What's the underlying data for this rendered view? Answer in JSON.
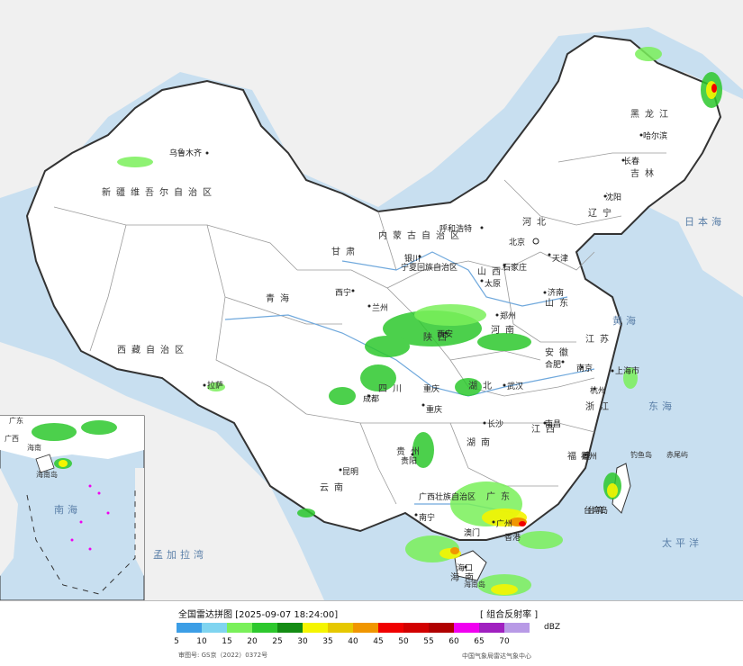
{
  "title": "全国雷达拼图 [2025-09-07 18:24:00]",
  "product": "[ 组合反射率 ]",
  "unit": "dBZ",
  "approval": "审图号: GS京（2022）0372号",
  "source": "中国气象局雷达气象中心",
  "legend": {
    "ticks": [
      "5",
      "10",
      "15",
      "20",
      "25",
      "30",
      "35",
      "40",
      "45",
      "50",
      "55",
      "60",
      "65",
      "70"
    ],
    "colors": [
      "#3c9ee6",
      "#7fd4f0",
      "#7af05a",
      "#2dc82d",
      "#148c14",
      "#f5f500",
      "#e6c800",
      "#f09600",
      "#f00000",
      "#d20000",
      "#b00000",
      "#f000f0",
      "#a020c0",
      "#b89ae6"
    ]
  },
  "regions": [
    "新疆维吾尔自治区",
    "西藏自治区",
    "青海",
    "甘肃",
    "内蒙古自治区",
    "黑龙江",
    "吉林",
    "辽宁",
    "河北",
    "山西",
    "陕西",
    "四川",
    "云南",
    "贵州",
    "湖南",
    "湖北",
    "河南",
    "山东",
    "江苏",
    "安徽",
    "江西",
    "浙江",
    "福建",
    "广东",
    "广西壮族自治区",
    "海南",
    "宁夏回族自治区",
    "重庆",
    "台湾",
    "香港",
    "澳门"
  ],
  "cities": [
    "乌鲁木齐",
    "拉萨",
    "西宁",
    "兰州",
    "银川",
    "呼和浩特",
    "北京",
    "天津",
    "石家庄",
    "太原",
    "济南",
    "西安",
    "郑州",
    "成都",
    "重庆",
    "贵阳",
    "昆明",
    "南宁",
    "长沙",
    "武汉",
    "合肥",
    "南京",
    "上海市",
    "杭州",
    "南昌",
    "福州",
    "广州",
    "海口",
    "哈尔滨",
    "长春",
    "沈阳",
    "台湾岛",
    "钓鱼岛",
    "赤尾屿",
    "海南岛"
  ],
  "seas": [
    "日本海",
    "黄海",
    "东海",
    "太平洋",
    "南海",
    "孟加拉湾"
  ],
  "inset_labels": [
    "广东",
    "广西",
    "海南",
    "海南岛"
  ]
}
